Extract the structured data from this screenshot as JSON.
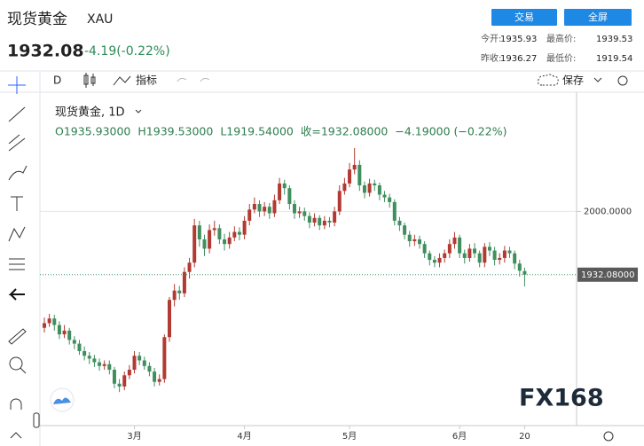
{
  "header": {
    "name": "现货黄金",
    "symbol": "XAU",
    "price": "1932.08",
    "change": "-4.19(-0.22%)",
    "trade_button": "交易",
    "fullscreen_button": "全屏",
    "stats": [
      {
        "label": "今开:",
        "value": "1935.93"
      },
      {
        "label": "最高价:",
        "value": "1939.53"
      },
      {
        "label": "昨收:",
        "value": "1936.27"
      },
      {
        "label": "最低价:",
        "value": "1919.54"
      }
    ]
  },
  "toolbar": {
    "interval": "D",
    "indicators": "指标",
    "save": "保存"
  },
  "chart_data": {
    "type": "candlestick",
    "title": "现货黄金, 1D",
    "ohlc_legend": [
      "O1935.93000",
      "H1939.53000",
      "L1919.54000",
      "收=1932.08000",
      "−4.19000 (−0.22%)"
    ],
    "watermark": "FX168",
    "up_color": "#b23a32",
    "down_color": "#3f8f5e",
    "ylim": [
      1770,
      2128
    ],
    "yticks": [
      {
        "value": 2000,
        "label": "2000.0000"
      }
    ],
    "last_price": {
      "value": 1932.08,
      "label": "1932.08000"
    },
    "categories": [
      null,
      null,
      null,
      null,
      null,
      null,
      null,
      null,
      null,
      null,
      null,
      null,
      null,
      null,
      null,
      null,
      null,
      null,
      "3月",
      null,
      null,
      null,
      null,
      null,
      null,
      null,
      null,
      null,
      null,
      null,
      null,
      null,
      null,
      null,
      null,
      null,
      null,
      null,
      null,
      null,
      "4月",
      null,
      null,
      null,
      null,
      null,
      null,
      null,
      null,
      null,
      null,
      null,
      null,
      null,
      null,
      null,
      null,
      null,
      null,
      null,
      null,
      "5月",
      null,
      null,
      null,
      null,
      null,
      null,
      null,
      null,
      null,
      null,
      null,
      null,
      null,
      null,
      null,
      null,
      null,
      null,
      null,
      null,
      null,
      "6月",
      null,
      null,
      null,
      null,
      null,
      null,
      null,
      null,
      null,
      null,
      null,
      null,
      "20"
    ],
    "open": [
      1875,
      1880,
      1885,
      1878,
      1868,
      1872,
      1862,
      1858,
      1850,
      1845,
      1842,
      1838,
      1834,
      1836,
      1830,
      1815,
      1812,
      1824,
      1830,
      1845,
      1840,
      1834,
      1828,
      1817,
      1820,
      1865,
      1905,
      1915,
      1912,
      1935,
      1945,
      1985,
      1970,
      1960,
      1980,
      1982,
      1970,
      1965,
      1972,
      1978,
      1975,
      1990,
      2002,
      2008,
      2000,
      2005,
      1998,
      2012,
      2030,
      2025,
      2008,
      1998,
      2000,
      1995,
      1988,
      1993,
      1985,
      1990,
      1988,
      2000,
      2022,
      2030,
      2045,
      2050,
      2028,
      2020,
      2030,
      2028,
      2018,
      2015,
      2010,
      1990,
      1985,
      1975,
      1968,
      1970,
      1965,
      1955,
      1948,
      1945,
      1950,
      1955,
      1965,
      1972,
      1955,
      1950,
      1960,
      1955,
      1945,
      1962,
      1958,
      1948,
      1950,
      1958,
      1955,
      1944,
      1935.93
    ],
    "high": [
      1886,
      1890,
      1889,
      1882,
      1878,
      1875,
      1866,
      1862,
      1855,
      1849,
      1846,
      1842,
      1840,
      1840,
      1833,
      1820,
      1828,
      1835,
      1850,
      1849,
      1844,
      1838,
      1832,
      1825,
      1868,
      1908,
      1922,
      1920,
      1940,
      1950,
      1992,
      1990,
      1975,
      1986,
      1990,
      1986,
      1976,
      1978,
      1984,
      1983,
      1995,
      2008,
      2015,
      2012,
      2010,
      2009,
      2018,
      2036,
      2034,
      2028,
      2012,
      2005,
      2004,
      1999,
      1998,
      1996,
      1995,
      1994,
      2005,
      2028,
      2036,
      2052,
      2068,
      2055,
      2032,
      2035,
      2034,
      2031,
      2022,
      2019,
      2013,
      1994,
      1988,
      1979,
      1975,
      1974,
      1968,
      1958,
      1952,
      1955,
      1959,
      1970,
      1978,
      1975,
      1959,
      1965,
      1966,
      1958,
      1966,
      1967,
      1962,
      1955,
      1963,
      1962,
      1958,
      1948,
      1939.53
    ],
    "low": [
      1870,
      1876,
      1872,
      1863,
      1864,
      1857,
      1852,
      1846,
      1840,
      1836,
      1833,
      1829,
      1830,
      1825,
      1810,
      1806,
      1808,
      1820,
      1826,
      1835,
      1830,
      1823,
      1812,
      1813,
      1816,
      1860,
      1898,
      1905,
      1908,
      1928,
      1940,
      1962,
      1952,
      1955,
      1974,
      1965,
      1958,
      1960,
      1968,
      1969,
      1970,
      1985,
      1998,
      1994,
      1995,
      1992,
      1994,
      2008,
      2018,
      2002,
      1992,
      1993,
      1990,
      1982,
      1984,
      1980,
      1981,
      1983,
      1984,
      1996,
      2018,
      2026,
      2040,
      2022,
      2014,
      2016,
      2022,
      2012,
      2010,
      2004,
      1985,
      1979,
      1970,
      1962,
      1963,
      1960,
      1950,
      1942,
      1940,
      1940,
      1945,
      1950,
      1960,
      1950,
      1944,
      1946,
      1950,
      1940,
      1940,
      1952,
      1942,
      1943,
      1945,
      1950,
      1938,
      1930,
      1919.54
    ],
    "close": [
      1880,
      1885,
      1878,
      1868,
      1872,
      1862,
      1858,
      1850,
      1845,
      1842,
      1838,
      1834,
      1836,
      1830,
      1815,
      1812,
      1824,
      1830,
      1845,
      1840,
      1834,
      1828,
      1817,
      1820,
      1865,
      1905,
      1915,
      1912,
      1935,
      1945,
      1985,
      1970,
      1960,
      1980,
      1982,
      1970,
      1965,
      1972,
      1978,
      1975,
      1990,
      2002,
      2008,
      2000,
      2005,
      1998,
      2012,
      2030,
      2025,
      2008,
      1998,
      2000,
      1995,
      1988,
      1993,
      1985,
      1990,
      1988,
      2000,
      2022,
      2030,
      2045,
      2050,
      2028,
      2020,
      2030,
      2028,
      2018,
      2015,
      2010,
      1990,
      1985,
      1975,
      1968,
      1970,
      1965,
      1955,
      1948,
      1945,
      1950,
      1955,
      1965,
      1972,
      1955,
      1950,
      1960,
      1955,
      1945,
      1962,
      1958,
      1948,
      1950,
      1958,
      1955,
      1944,
      1936.27,
      1932.08
    ]
  }
}
